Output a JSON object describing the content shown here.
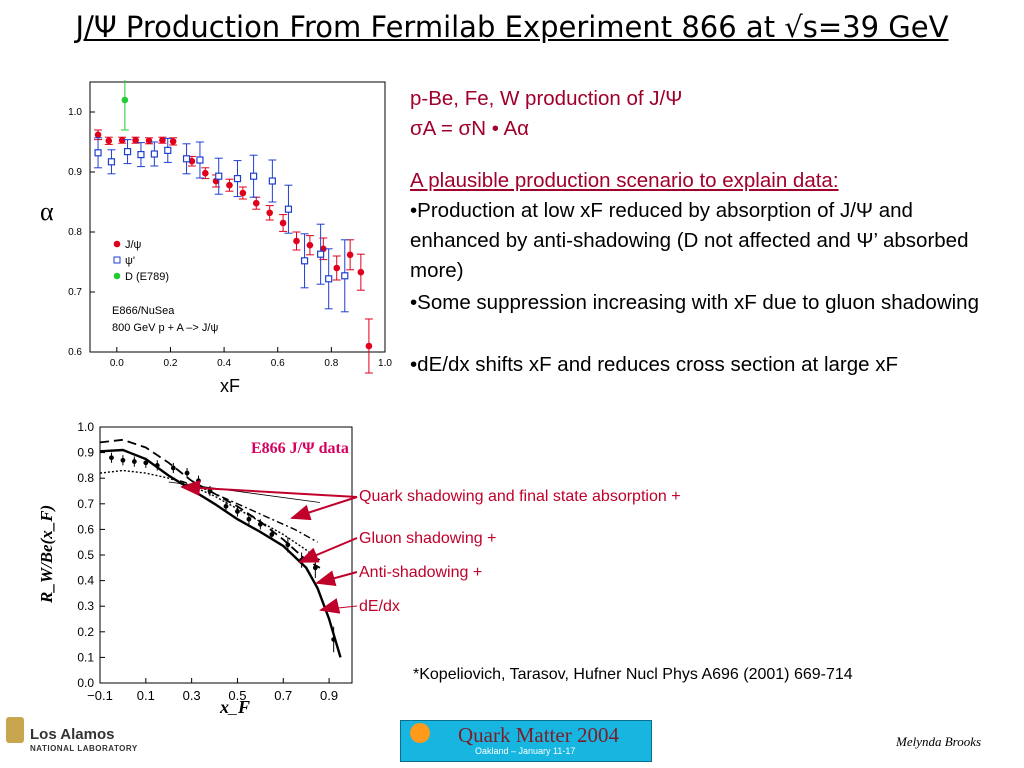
{
  "title": "J/Ψ Production From Fermilab Experiment 866 at √s=39 GeV",
  "right_text": {
    "line1": "p-Be, Fe, W production of J/Ψ",
    "formula": "σA = σN • Aα",
    "plausible_heading": "A plausible production scenario to explain data:",
    "bullets": [
      "•Production at low xF reduced by absorption of J/Ψ and enhanced by anti-shadowing (D not affected and Ψ’ absorbed more)",
      "•Some suppression increasing with xF due to gluon shadowing",
      "•dE/dx shifts xF and reduces cross section at large xF"
    ]
  },
  "annotations": {
    "label_top": "E866 J/Ψ data",
    "quark": "Quark shadowing and final state absorption +",
    "gluon": "Gluon shadowing +",
    "anti": "Anti-shadowing +",
    "dedx": "dE/dx"
  },
  "reference": "*Kopeliovich, Tarasov, Hufner Nucl Phys A696 (2001) 669-714",
  "footer": {
    "author": "Melynda Brooks",
    "lanl_name": "Los Alamos",
    "lanl_sub": "NATIONAL LABORATORY",
    "conference": "Quark Matter 2004",
    "conference_sub": "Oakland – January 11-17"
  },
  "colors": {
    "red": "#e0001b",
    "blue": "#1f3fd0",
    "green": "#22cc33",
    "annotation": "#c0002a"
  },
  "chart_data": [
    {
      "type": "scatter",
      "ylabel": "α",
      "xlabel": "xF",
      "xlim": [
        -0.1,
        1.0
      ],
      "ylim": [
        0.6,
        1.05
      ],
      "xticks": [
        "0.0",
        "0.2",
        "0.4",
        "0.6",
        "0.8",
        "1.0"
      ],
      "yticks": [
        "0.6",
        "0.7",
        "0.8",
        "0.9",
        "1.0"
      ],
      "legend": {
        "position": "left-middle",
        "entries": [
          "J/ψ",
          "ψ'",
          "D (E789)"
        ]
      },
      "annotation": [
        "E866/NuSea",
        "800 GeV p + A –> J/ψ"
      ],
      "series": [
        {
          "name": "J/ψ",
          "marker": "filled-circle",
          "color": "#e0001b",
          "points": [
            [
              -0.07,
              0.962
            ],
            [
              -0.03,
              0.952
            ],
            [
              0.02,
              0.953
            ],
            [
              0.07,
              0.953
            ],
            [
              0.12,
              0.952
            ],
            [
              0.17,
              0.953
            ],
            [
              0.21,
              0.951
            ],
            [
              0.28,
              0.918
            ],
            [
              0.33,
              0.898
            ],
            [
              0.37,
              0.885
            ],
            [
              0.42,
              0.878
            ],
            [
              0.47,
              0.865
            ],
            [
              0.52,
              0.848
            ],
            [
              0.57,
              0.832
            ],
            [
              0.62,
              0.815
            ],
            [
              0.67,
              0.785
            ],
            [
              0.72,
              0.778
            ],
            [
              0.77,
              0.772
            ],
            [
              0.82,
              0.74
            ],
            [
              0.87,
              0.762
            ],
            [
              0.91,
              0.733
            ],
            [
              0.94,
              0.61
            ]
          ],
          "errors": [
            0.008,
            0.006,
            0.005,
            0.005,
            0.005,
            0.005,
            0.006,
            0.008,
            0.009,
            0.01,
            0.01,
            0.01,
            0.01,
            0.012,
            0.014,
            0.015,
            0.016,
            0.018,
            0.02,
            0.025,
            0.03,
            0.045
          ]
        },
        {
          "name": "ψ'",
          "marker": "open-square",
          "color": "#1f3fd0",
          "points": [
            [
              -0.07,
              0.932
            ],
            [
              -0.02,
              0.917
            ],
            [
              0.04,
              0.934
            ],
            [
              0.09,
              0.929
            ],
            [
              0.14,
              0.93
            ],
            [
              0.19,
              0.936
            ],
            [
              0.26,
              0.922
            ],
            [
              0.31,
              0.92
            ],
            [
              0.38,
              0.893
            ],
            [
              0.45,
              0.889
            ],
            [
              0.51,
              0.893
            ],
            [
              0.58,
              0.885
            ],
            [
              0.64,
              0.838
            ],
            [
              0.7,
              0.752
            ],
            [
              0.76,
              0.763
            ],
            [
              0.79,
              0.722
            ],
            [
              0.85,
              0.727
            ]
          ],
          "errors": [
            0.025,
            0.02,
            0.02,
            0.02,
            0.02,
            0.02,
            0.025,
            0.03,
            0.03,
            0.03,
            0.035,
            0.035,
            0.04,
            0.045,
            0.05,
            0.05,
            0.06
          ]
        },
        {
          "name": "D (E789)",
          "marker": "filled-circle",
          "color": "#22cc33",
          "points": [
            [
              0.03,
              1.02
            ]
          ],
          "errors": [
            0.05
          ]
        }
      ]
    },
    {
      "type": "line",
      "ylabel": "R_W/Be(x_F)",
      "xlabel": "x_F",
      "xlim": [
        -0.1,
        1.0
      ],
      "ylim": [
        0.0,
        1.0
      ],
      "xticks": [
        "−0.1",
        "0.1",
        "0.3",
        "0.5",
        "0.7",
        "0.9"
      ],
      "yticks": [
        "0.0",
        "0.1",
        "0.2",
        "0.3",
        "0.4",
        "0.5",
        "0.6",
        "0.7",
        "0.8",
        "0.9",
        "1.0"
      ],
      "data_points": {
        "x": [
          -0.05,
          0.0,
          0.05,
          0.1,
          0.15,
          0.22,
          0.28,
          0.33,
          0.38,
          0.45,
          0.5,
          0.55,
          0.6,
          0.65,
          0.72,
          0.78,
          0.84,
          0.92
        ],
        "y": [
          0.88,
          0.87,
          0.865,
          0.86,
          0.85,
          0.84,
          0.82,
          0.79,
          0.75,
          0.69,
          0.67,
          0.64,
          0.62,
          0.58,
          0.54,
          0.48,
          0.45,
          0.17
        ],
        "errors": [
          0.02,
          0.02,
          0.02,
          0.02,
          0.02,
          0.02,
          0.02,
          0.02,
          0.02,
          0.02,
          0.02,
          0.02,
          0.02,
          0.02,
          0.03,
          0.03,
          0.04,
          0.05
        ]
      },
      "series": [
        {
          "style": "solid-thick",
          "x": [
            -0.1,
            0.0,
            0.1,
            0.2,
            0.3,
            0.4,
            0.5,
            0.6,
            0.7,
            0.8,
            0.85,
            0.9,
            0.95
          ],
          "y": [
            0.905,
            0.91,
            0.875,
            0.81,
            0.755,
            0.7,
            0.64,
            0.59,
            0.535,
            0.45,
            0.37,
            0.25,
            0.1
          ]
        },
        {
          "style": "dashed",
          "x": [
            -0.1,
            0.0,
            0.1,
            0.2,
            0.3,
            0.4,
            0.5,
            0.6,
            0.7,
            0.8,
            0.86
          ],
          "y": [
            0.94,
            0.95,
            0.92,
            0.86,
            0.79,
            0.74,
            0.69,
            0.63,
            0.56,
            0.48,
            0.45
          ]
        },
        {
          "style": "dotted",
          "x": [
            -0.1,
            0.0,
            0.1,
            0.2,
            0.3,
            0.4,
            0.5,
            0.6,
            0.7,
            0.8,
            0.86
          ],
          "y": [
            0.82,
            0.83,
            0.82,
            0.8,
            0.77,
            0.73,
            0.68,
            0.63,
            0.58,
            0.52,
            0.48
          ]
        },
        {
          "style": "dash-dot",
          "x": [
            0.25,
            0.35,
            0.45,
            0.55,
            0.65,
            0.75,
            0.85
          ],
          "y": [
            0.79,
            0.76,
            0.72,
            0.68,
            0.64,
            0.6,
            0.55
          ]
        },
        {
          "style": "thin",
          "x": [
            0.2,
            0.86
          ],
          "y": [
            0.785,
            0.705
          ]
        }
      ]
    }
  ]
}
